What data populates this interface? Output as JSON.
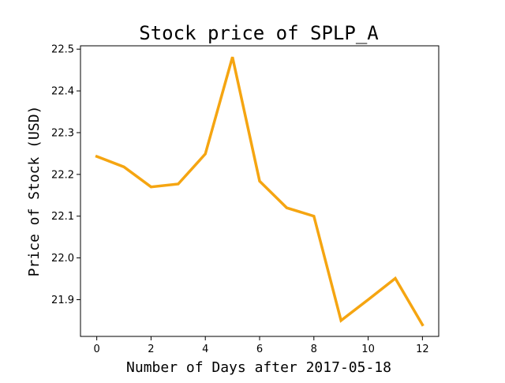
{
  "chart_data": {
    "type": "line",
    "title": "Stock price of SPLP_A",
    "xlabel": "Number of Days after 2017-05-18",
    "ylabel": "Price of Stock (USD)",
    "x": [
      0,
      1,
      2,
      3,
      4,
      5,
      6,
      7,
      8,
      9,
      10,
      11,
      12
    ],
    "series": [
      {
        "values": [
          22.243,
          22.218,
          22.17,
          22.177,
          22.249,
          22.481,
          22.184,
          22.12,
          22.1,
          21.85,
          21.9,
          21.951,
          21.84
        ],
        "color": "#f5a511"
      }
    ],
    "xlim": [
      -0.6,
      12.6
    ],
    "ylim": [
      21.812,
      22.508
    ],
    "xticks": [
      0,
      2,
      4,
      6,
      8,
      10,
      12
    ],
    "yticks": [
      21.9,
      22.0,
      22.1,
      22.2,
      22.3,
      22.4,
      22.5
    ],
    "xtick_labels": [
      "0",
      "2",
      "4",
      "6",
      "8",
      "10",
      "12"
    ],
    "ytick_labels": [
      "21.9",
      "22.0",
      "22.1",
      "22.2",
      "22.3",
      "22.4",
      "22.5"
    ],
    "grid": false,
    "legend": "none"
  }
}
